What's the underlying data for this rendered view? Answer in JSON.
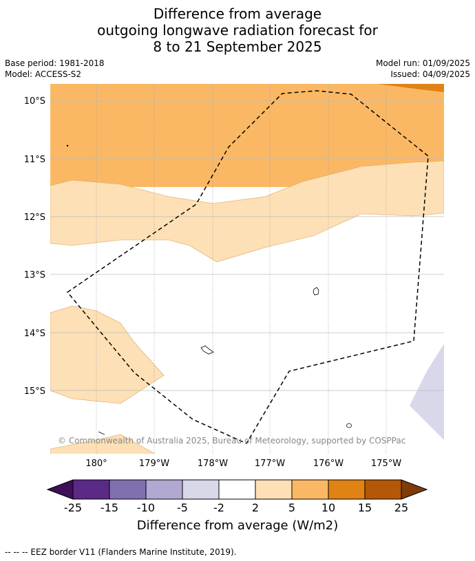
{
  "title": {
    "line1": "Difference from average",
    "line2": "outgoing longwave radiation forecast for",
    "line3": "8 to 21 September 2025"
  },
  "meta": {
    "base_period": "Base period: 1981-2018",
    "model": "Model: ACCESS-S2",
    "model_run": "Model run: 01/09/2025",
    "issued": "Issued: 04/09/2025"
  },
  "map": {
    "lat_labels": [
      "10°S",
      "11°S",
      "12°S",
      "13°S",
      "14°S",
      "15°S"
    ],
    "lon_labels": [
      "180°",
      "179°W",
      "178°W",
      "177°W",
      "176°W",
      "175°W"
    ],
    "copyright": "© Commonwealth of Australia 2025, Bureau of Meteorology, supported by COSPPac"
  },
  "colorbar": {
    "ticks": [
      "-25",
      "-15",
      "-10",
      "-5",
      "-2",
      "2",
      "5",
      "10",
      "15",
      "25"
    ],
    "colors": [
      "#3f0f5a",
      "#5a2a86",
      "#8070b0",
      "#b1a9d1",
      "#d8d8ea",
      "#ffffff",
      "#fde0b5",
      "#fbb864",
      "#e08214",
      "#b35806",
      "#7f3b08"
    ],
    "label": "Difference from average (W/m2)"
  },
  "footer": {
    "legend": "--  --  -- EEZ border V11 (Flanders Marine Institute, 2019)."
  }
}
